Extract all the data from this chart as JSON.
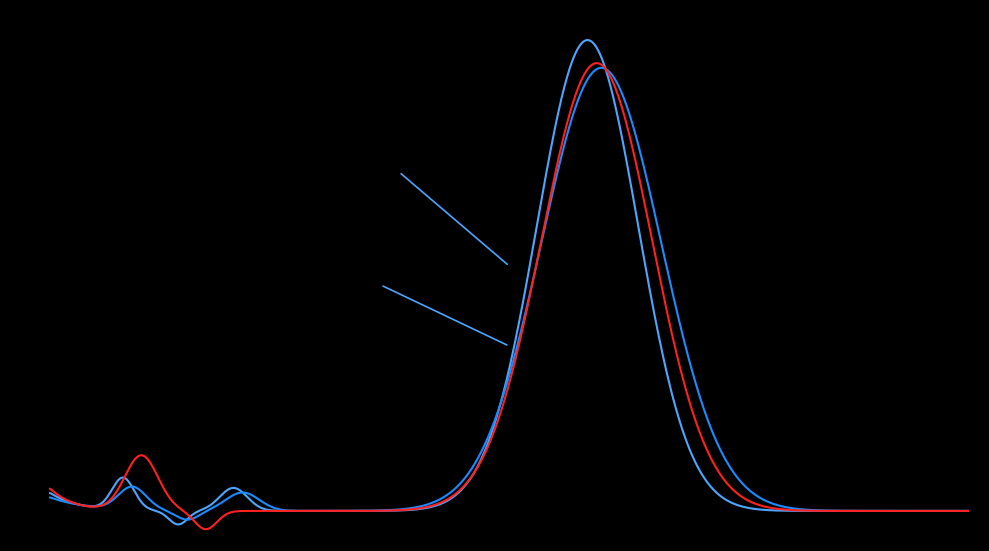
{
  "background_color": "#000000",
  "line_color_blue1": "#4da6ff",
  "line_color_blue2": "#1a8cff",
  "line_color_red": "#ff2020",
  "annotation_color": "#4da6ff",
  "fig_width": 9.89,
  "fig_height": 5.51,
  "xlim": [
    0,
    1
  ],
  "ylim": [
    -0.05,
    1.05
  ],
  "linewidth": 1.5
}
